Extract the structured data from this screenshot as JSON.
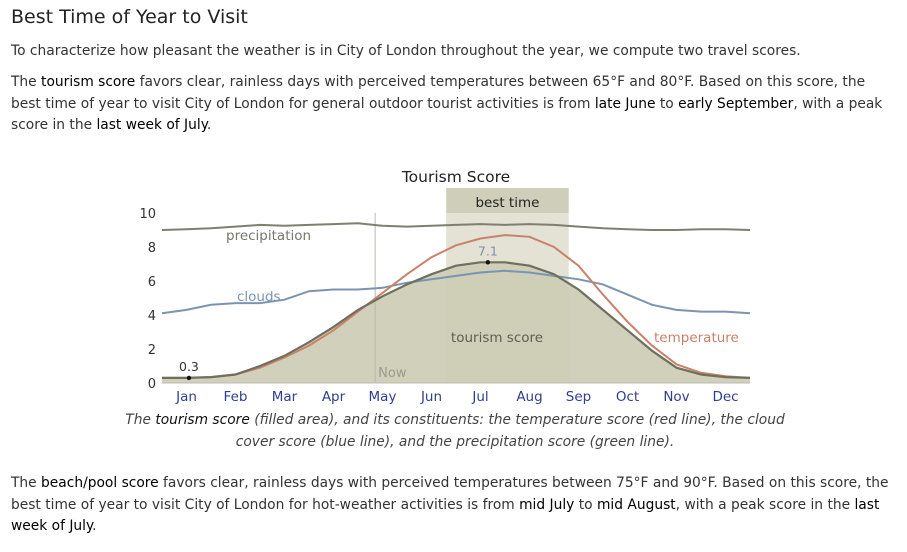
{
  "heading": "Best Time of Year to Visit",
  "intro": "To characterize how pleasant the weather is in City of London throughout the year, we compute two travel scores.",
  "tourism_paragraph": {
    "t1": "The ",
    "k1": "tourism score",
    "t2": " favors clear, rainless days with perceived temperatures between 65°F and 80°F. Based on this score, the best time of year to visit City of London for general outdoor tourist activities is from ",
    "k2": "late June",
    "t3": " to ",
    "k3": "early September",
    "t4": ", with a peak score in the ",
    "k4": "last week of July",
    "t5": "."
  },
  "caption": {
    "t1": "The ",
    "k1": "tourism score",
    "t2": " (filled area), and its constituents: the temperature score (red line), the cloud cover score (blue line), and the precipitation score (green line)."
  },
  "beach_paragraph": {
    "t1": "The ",
    "k1": "beach/pool score",
    "t2": " favors clear, rainless days with perceived temperatures between 75°F and 90°F. Based on this score, the best time of year to visit City of London for hot-weather activities is from ",
    "k2": "mid July",
    "t3": " to ",
    "k3": "mid August",
    "t4": ", with a peak score in the ",
    "k4": "last week of July",
    "t5": "."
  },
  "chart_data": {
    "type": "area",
    "title": "Tourism Score",
    "ylim": [
      0,
      10
    ],
    "yticks": [
      0,
      2,
      4,
      6,
      8,
      10
    ],
    "xlim": [
      0,
      12
    ],
    "month_labels": [
      "Jan",
      "Feb",
      "Mar",
      "Apr",
      "May",
      "Jun",
      "Jul",
      "Aug",
      "Sep",
      "Oct",
      "Nov",
      "Dec"
    ],
    "best_time": {
      "label": "best time",
      "start_month": 5.8,
      "end_month": 8.3
    },
    "now": {
      "label": "Now",
      "month": 4.35
    },
    "annotations": [
      {
        "label": "0.3",
        "month": 0.55,
        "value": 0.3
      },
      {
        "label": "7.1",
        "month": 6.65,
        "value": 7.1
      }
    ],
    "series_labels": {
      "precipitation": "precipitation",
      "clouds": "clouds",
      "tourism": "tourism score",
      "temperature": "temperature"
    },
    "colors": {
      "precipitation": "#7f7f70",
      "clouds": "#7b94b3",
      "temperature": "#c9826a",
      "tourism_fill": "#cdccb4",
      "tourism_line": "#6f6f5e",
      "best_time_band": "#e3e2d5",
      "best_time_header": "#cfceba",
      "month_label": "#2f3f8f"
    },
    "series": [
      {
        "name": "precipitation",
        "x": [
          0,
          0.5,
          1,
          1.5,
          2,
          2.5,
          3,
          3.5,
          4,
          4.5,
          5,
          5.5,
          6,
          6.5,
          7,
          7.5,
          8,
          8.5,
          9,
          9.5,
          10,
          10.5,
          11,
          11.5,
          12
        ],
        "values": [
          9.0,
          9.05,
          9.1,
          9.2,
          9.3,
          9.25,
          9.3,
          9.35,
          9.4,
          9.25,
          9.2,
          9.25,
          9.3,
          9.35,
          9.3,
          9.35,
          9.3,
          9.2,
          9.1,
          9.05,
          9.0,
          9.0,
          9.05,
          9.05,
          9.0
        ]
      },
      {
        "name": "clouds",
        "x": [
          0,
          0.5,
          1,
          1.5,
          2,
          2.5,
          3,
          3.5,
          4,
          4.5,
          5,
          5.5,
          6,
          6.5,
          7,
          7.5,
          8,
          8.5,
          9,
          9.5,
          10,
          10.5,
          11,
          11.5,
          12
        ],
        "values": [
          4.1,
          4.3,
          4.6,
          4.7,
          4.7,
          4.9,
          5.4,
          5.5,
          5.5,
          5.6,
          5.9,
          6.1,
          6.3,
          6.5,
          6.6,
          6.5,
          6.3,
          6.1,
          5.8,
          5.2,
          4.6,
          4.3,
          4.2,
          4.2,
          4.1
        ]
      },
      {
        "name": "temperature",
        "x": [
          0,
          0.5,
          1,
          1.5,
          2,
          2.5,
          3,
          3.5,
          4,
          4.5,
          5,
          5.5,
          6,
          6.5,
          7,
          7.5,
          8,
          8.5,
          9,
          9.5,
          10,
          10.5,
          11,
          11.5,
          12
        ],
        "values": [
          0.3,
          0.3,
          0.35,
          0.5,
          0.9,
          1.5,
          2.2,
          3.1,
          4.2,
          5.3,
          6.4,
          7.4,
          8.1,
          8.5,
          8.7,
          8.6,
          8.0,
          6.9,
          5.2,
          3.6,
          2.2,
          1.1,
          0.6,
          0.4,
          0.3
        ]
      },
      {
        "name": "tourism score",
        "x": [
          0,
          0.5,
          1,
          1.5,
          2,
          2.5,
          3,
          3.5,
          4,
          4.5,
          5,
          5.5,
          6,
          6.5,
          7,
          7.5,
          8,
          8.5,
          9,
          9.5,
          10,
          10.5,
          11,
          11.5,
          12
        ],
        "values": [
          0.3,
          0.3,
          0.35,
          0.5,
          1.0,
          1.6,
          2.4,
          3.3,
          4.3,
          5.1,
          5.8,
          6.4,
          6.9,
          7.1,
          7.1,
          6.9,
          6.4,
          5.5,
          4.3,
          3.1,
          1.9,
          0.9,
          0.5,
          0.35,
          0.3
        ]
      }
    ]
  }
}
